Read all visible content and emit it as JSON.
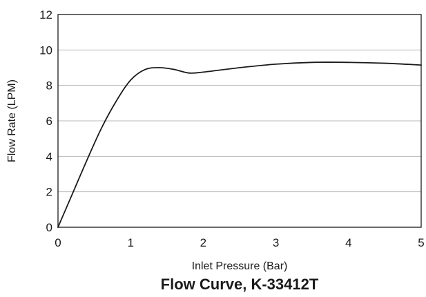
{
  "chart_data": {
    "type": "line",
    "title": "Flow Curve, K-33412T",
    "xlabel": "Inlet Pressure (Bar)",
    "ylabel": "Flow Rate (LPM)",
    "xlim": [
      0,
      5
    ],
    "ylim": [
      0,
      12
    ],
    "x_ticks": [
      "0",
      "1",
      "2",
      "3",
      "4",
      "5"
    ],
    "y_ticks": [
      "0",
      "2",
      "4",
      "6",
      "8",
      "10",
      "12"
    ],
    "grid": "horizontal",
    "series": [
      {
        "color": "#1a1a1a",
        "x": [
          0,
          0.2,
          0.4,
          0.6,
          0.8,
          1.0,
          1.2,
          1.4,
          1.6,
          1.8,
          2.0,
          2.5,
          3.0,
          3.5,
          4.0,
          4.5,
          5.0
        ],
        "y": [
          0,
          1.9,
          3.8,
          5.6,
          7.1,
          8.3,
          8.9,
          9.0,
          8.9,
          8.7,
          8.75,
          9.0,
          9.2,
          9.3,
          9.3,
          9.25,
          9.15
        ]
      }
    ]
  }
}
